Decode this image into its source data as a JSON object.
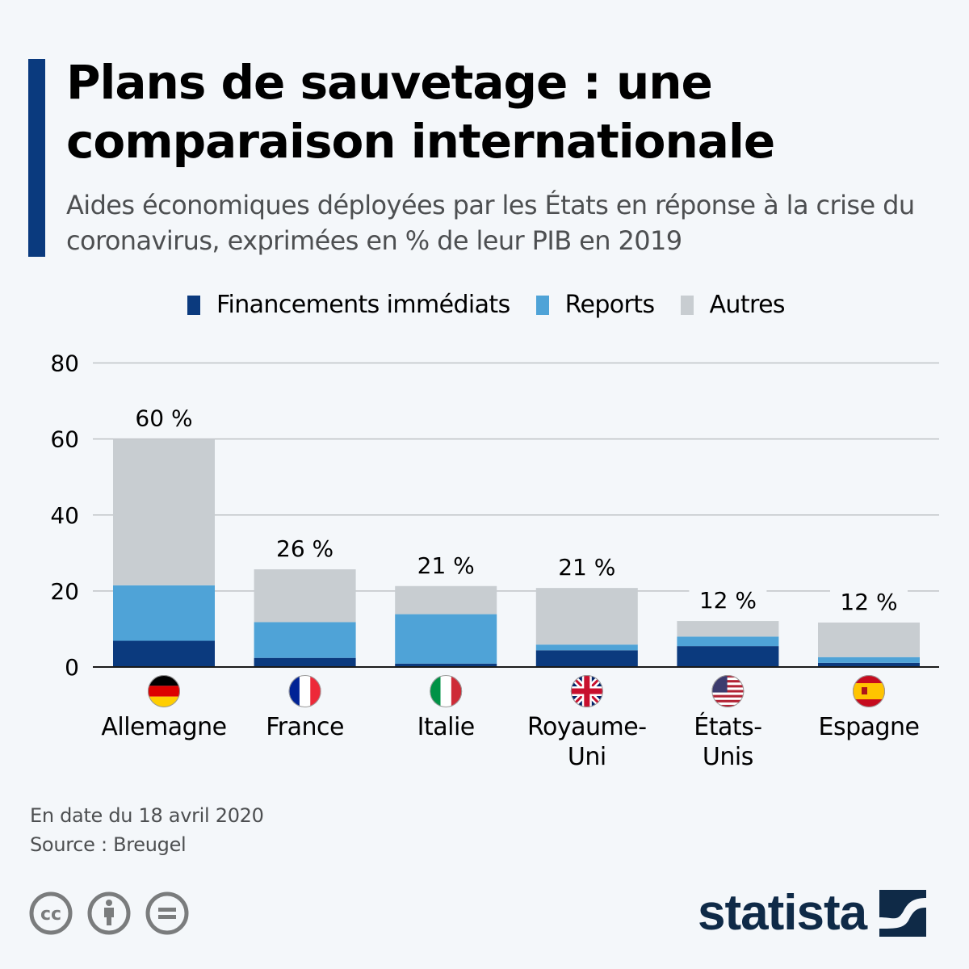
{
  "header": {
    "title": "Plans de sauvetage : une comparaison internationale",
    "subtitle": "Aides économiques déployées par les États en réponse à la crise du coronavirus, exprimées en % de leur PIB en 2019"
  },
  "colors": {
    "accent": "#0a3a7e",
    "immediate": "#0b3a7e",
    "reports": "#4fa3d7",
    "others": "#c8cdd1",
    "grid": "#bfc3c6",
    "axis": "#1a1a1a",
    "background": "#f4f7fa"
  },
  "chart_data": {
    "type": "bar",
    "stacked": true,
    "title": "Plans de sauvetage : une comparaison internationale",
    "xlabel": "",
    "ylabel": "",
    "ylim": [
      0,
      80
    ],
    "yticks": [
      0,
      20,
      40,
      60,
      80
    ],
    "grid": true,
    "legend_position": "top-center",
    "categories": [
      "Allemagne",
      "France",
      "Italie",
      "Royaume-Uni",
      "États-Unis",
      "Espagne"
    ],
    "category_label_lines": [
      [
        "Allemagne"
      ],
      [
        "France"
      ],
      [
        "Italie"
      ],
      [
        "Royaume-",
        "Uni"
      ],
      [
        "États-",
        "Unis"
      ],
      [
        "Espagne"
      ]
    ],
    "flags": [
      "flag-germany",
      "flag-france",
      "flag-italy",
      "flag-uk",
      "flag-usa",
      "flag-spain"
    ],
    "series": [
      {
        "name": "Financements immédiats",
        "color_key": "immediate",
        "values": [
          6.9,
          2.4,
          0.9,
          4.4,
          5.5,
          1.1
        ]
      },
      {
        "name": "Reports",
        "color_key": "reports",
        "values": [
          14.6,
          9.4,
          13.0,
          1.5,
          2.5,
          1.5
        ]
      },
      {
        "name": "Autres",
        "color_key": "others",
        "values": [
          38.5,
          13.9,
          7.4,
          14.9,
          4.1,
          9.1
        ]
      }
    ],
    "total_labels": [
      "60 %",
      "26 %",
      "21 %",
      "21 %",
      "12 %",
      "12 %"
    ]
  },
  "footer": {
    "date_note": "En date du 18 avril 2020",
    "source": "Source : Breugel"
  },
  "license_icons": [
    "cc-icon",
    "attribution-icon",
    "no-derivatives-icon"
  ],
  "brand": {
    "name": "statista"
  }
}
